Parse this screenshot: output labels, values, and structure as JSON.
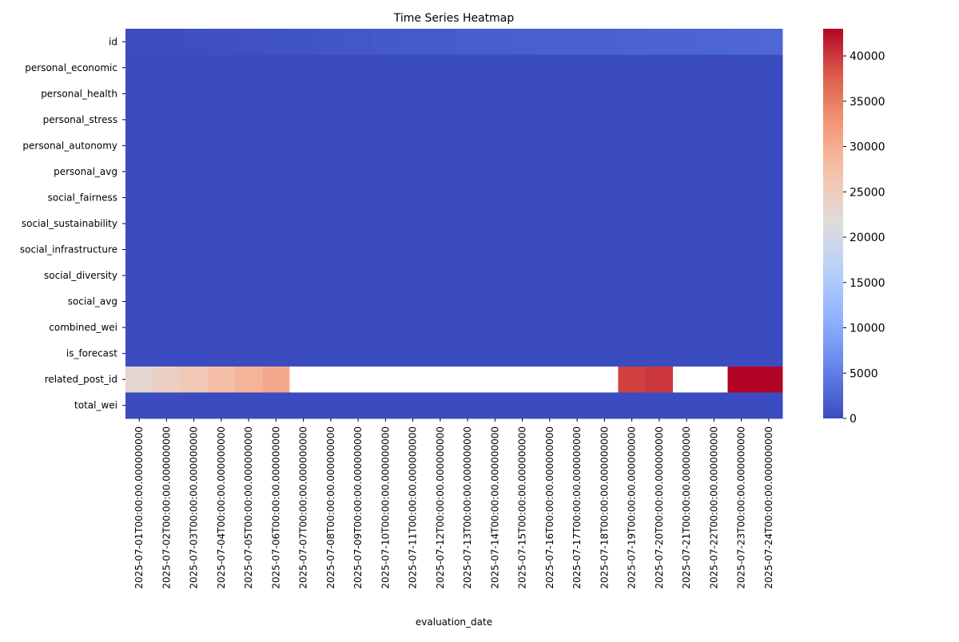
{
  "chart_data": {
    "type": "heatmap",
    "title": "Time Series Heatmap",
    "xlabel": "evaluation_date",
    "ylabel": "",
    "x": [
      "2025-07-01T00:00:00.000000000",
      "2025-07-02T00:00:00.000000000",
      "2025-07-03T00:00:00.000000000",
      "2025-07-04T00:00:00.000000000",
      "2025-07-05T00:00:00.000000000",
      "2025-07-06T00:00:00.000000000",
      "2025-07-07T00:00:00.000000000",
      "2025-07-08T00:00:00.000000000",
      "2025-07-09T00:00:00.000000000",
      "2025-07-10T00:00:00.000000000",
      "2025-07-11T00:00:00.000000000",
      "2025-07-12T00:00:00.000000000",
      "2025-07-13T00:00:00.000000000",
      "2025-07-14T00:00:00.000000000",
      "2025-07-15T00:00:00.000000000",
      "2025-07-16T00:00:00.000000000",
      "2025-07-17T00:00:00.000000000",
      "2025-07-18T00:00:00.000000000",
      "2025-07-19T00:00:00.000000000",
      "2025-07-20T00:00:00.000000000",
      "2025-07-21T00:00:00.000000000",
      "2025-07-22T00:00:00.000000000",
      "2025-07-23T00:00:00.000000000",
      "2025-07-24T00:00:00.000000000"
    ],
    "y": [
      "id",
      "personal_economic",
      "personal_health",
      "personal_stress",
      "personal_autonomy",
      "personal_avg",
      "social_fairness",
      "social_sustainability",
      "social_infrastructure",
      "social_diversity",
      "social_avg",
      "combined_wei",
      "is_forecast",
      "related_post_id",
      "total_wei"
    ],
    "colormap": "coolwarm",
    "missing_color": "#ffffff",
    "vmin": 0,
    "vmax": 43000,
    "colorbar_ticks": [
      0,
      5000,
      10000,
      15000,
      20000,
      25000,
      30000,
      35000,
      40000
    ],
    "values": [
      [
        50,
        150,
        250,
        350,
        500,
        650,
        800,
        950,
        1100,
        1250,
        1400,
        1550,
        1650,
        1750,
        1850,
        1950,
        2050,
        2100,
        2200,
        2300,
        2400,
        2500,
        2600,
        2700
      ],
      [
        0,
        0,
        0,
        0,
        0,
        0,
        0,
        0,
        0,
        0,
        0,
        0,
        0,
        0,
        0,
        0,
        0,
        0,
        0,
        0,
        0,
        0,
        0,
        0
      ],
      [
        0,
        0,
        0,
        0,
        0,
        0,
        0,
        0,
        0,
        0,
        0,
        0,
        0,
        0,
        0,
        0,
        0,
        0,
        0,
        0,
        0,
        0,
        0,
        0
      ],
      [
        0,
        0,
        0,
        0,
        0,
        0,
        0,
        0,
        0,
        0,
        0,
        0,
        0,
        0,
        0,
        0,
        0,
        0,
        0,
        0,
        0,
        0,
        0,
        0
      ],
      [
        0,
        0,
        0,
        0,
        0,
        0,
        0,
        0,
        0,
        0,
        0,
        0,
        0,
        0,
        0,
        0,
        0,
        0,
        0,
        0,
        0,
        0,
        0,
        0
      ],
      [
        0,
        0,
        0,
        0,
        0,
        0,
        0,
        0,
        0,
        0,
        0,
        0,
        0,
        0,
        0,
        0,
        0,
        0,
        0,
        0,
        0,
        0,
        0,
        0
      ],
      [
        0,
        0,
        0,
        0,
        0,
        0,
        0,
        0,
        0,
        0,
        0,
        0,
        0,
        0,
        0,
        0,
        0,
        0,
        0,
        0,
        0,
        0,
        0,
        0
      ],
      [
        0,
        0,
        0,
        0,
        0,
        0,
        0,
        0,
        0,
        0,
        0,
        0,
        0,
        0,
        0,
        0,
        0,
        0,
        0,
        0,
        0,
        0,
        0,
        0
      ],
      [
        0,
        0,
        0,
        0,
        0,
        0,
        0,
        0,
        0,
        0,
        0,
        0,
        0,
        0,
        0,
        0,
        0,
        0,
        0,
        0,
        0,
        0,
        0,
        0
      ],
      [
        0,
        0,
        0,
        0,
        0,
        0,
        0,
        0,
        0,
        0,
        0,
        0,
        0,
        0,
        0,
        0,
        0,
        0,
        0,
        0,
        0,
        0,
        0,
        0
      ],
      [
        0,
        0,
        0,
        0,
        0,
        0,
        0,
        0,
        0,
        0,
        0,
        0,
        0,
        0,
        0,
        0,
        0,
        0,
        0,
        0,
        0,
        0,
        0,
        0
      ],
      [
        0,
        0,
        0,
        0,
        0,
        0,
        0,
        0,
        0,
        0,
        0,
        0,
        0,
        0,
        0,
        0,
        0,
        0,
        0,
        0,
        0,
        0,
        0,
        0
      ],
      [
        0,
        0,
        0,
        0,
        0,
        0,
        0,
        0,
        0,
        0,
        0,
        0,
        0,
        0,
        0,
        0,
        0,
        0,
        0,
        0,
        0,
        0,
        0,
        0
      ],
      [
        23000,
        24500,
        26000,
        27500,
        29000,
        30500,
        null,
        null,
        null,
        null,
        null,
        null,
        null,
        null,
        null,
        null,
        null,
        null,
        39500,
        40000,
        null,
        null,
        43000,
        43000
      ],
      [
        0,
        0,
        0,
        0,
        0,
        0,
        0,
        0,
        0,
        0,
        0,
        0,
        0,
        0,
        0,
        0,
        0,
        0,
        0,
        0,
        0,
        0,
        0,
        0
      ]
    ]
  }
}
